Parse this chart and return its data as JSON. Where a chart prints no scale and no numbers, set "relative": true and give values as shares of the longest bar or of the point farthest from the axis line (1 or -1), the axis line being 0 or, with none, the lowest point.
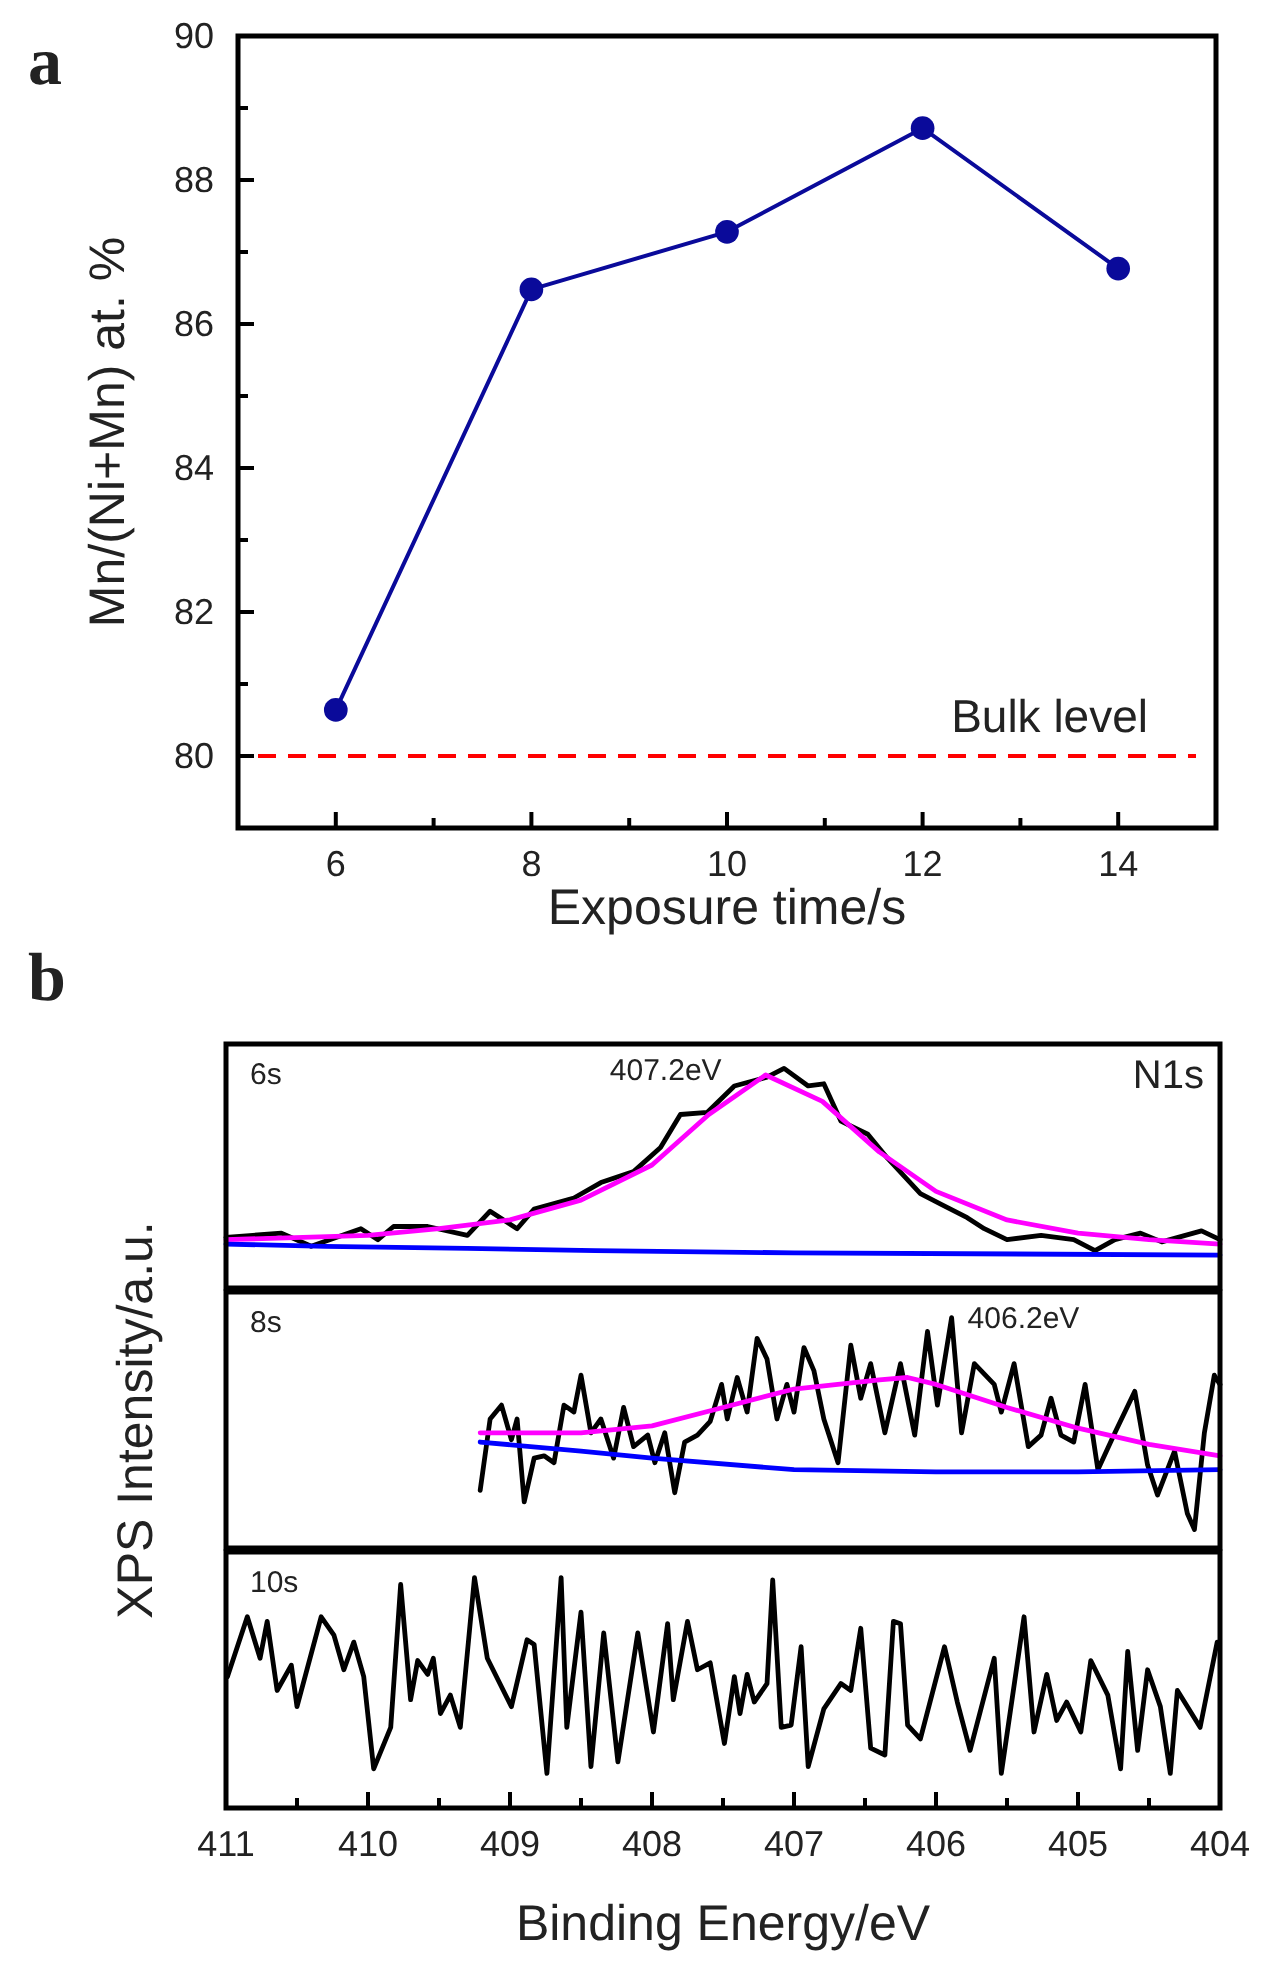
{
  "chart_data": [
    {
      "type": "line",
      "title": "a",
      "xlabel": "Exposure time/s",
      "ylabel": "Mn/(Ni+Mn) at. %",
      "x": [
        6,
        8,
        10,
        12,
        14
      ],
      "series": [
        {
          "color": "#0a0a9a",
          "values": [
            80.64,
            86.48,
            87.28,
            88.72,
            86.77
          ]
        }
      ],
      "marker": "circle",
      "xlim": [
        5,
        15
      ],
      "ylim": [
        79,
        90
      ],
      "xticks": [
        6,
        {
          "value": 7,
          "label": null
        },
        8,
        {
          "value": 9,
          "label": null
        },
        10,
        {
          "value": 11,
          "label": null
        },
        12,
        {
          "value": 13,
          "label": null
        },
        14
      ],
      "yticks": [
        80,
        {
          "value": 81,
          "label": null
        },
        82,
        {
          "value": 83,
          "label": null
        },
        84,
        {
          "value": 85,
          "label": null
        },
        86,
        {
          "value": 87,
          "label": null
        },
        88,
        {
          "value": 89,
          "label": null
        },
        90
      ],
      "ref_lines": [
        {
          "axis": "y",
          "value": 80,
          "label": "Bulk level",
          "color": "#ff0000",
          "line_style": "dashed"
        }
      ]
    },
    {
      "type": "line",
      "title": "b",
      "relative": true,
      "xlim": [
        411,
        404
      ],
      "annotations": [
        "6s",
        "N1s",
        {
          "text": "407.2eV",
          "x": 407.2,
          "y": 0.97
        }
      ],
      "series": [
        {
          "color": "#000000",
          "x": [
            411.0,
            410.61,
            410.4,
            410.05,
            409.93,
            409.82,
            409.58,
            409.3,
            409.14,
            408.95,
            408.83,
            408.55,
            408.36,
            408.13,
            407.94,
            407.8,
            407.61,
            407.42,
            407.19,
            407.07,
            406.9,
            406.79,
            406.67,
            406.48,
            406.34,
            406.11,
            405.96,
            405.78,
            405.66,
            405.5,
            405.26,
            405.03,
            404.88,
            404.74,
            404.56,
            404.41,
            404.13,
            404.0
          ],
          "values": [
            0.23,
            0.25,
            0.19,
            0.27,
            0.22,
            0.28,
            0.28,
            0.24,
            0.35,
            0.27,
            0.36,
            0.41,
            0.48,
            0.53,
            0.64,
            0.79,
            0.8,
            0.92,
            0.96,
            1.0,
            0.92,
            0.93,
            0.76,
            0.7,
            0.59,
            0.43,
            0.38,
            0.32,
            0.27,
            0.22,
            0.24,
            0.22,
            0.17,
            0.22,
            0.25,
            0.21,
            0.26,
            0.22
          ]
        },
        {
          "color": "#ff00ff",
          "x": [
            411,
            410,
            409.5,
            409,
            408.5,
            408,
            407.6,
            407.2,
            406.8,
            406.4,
            406,
            405.5,
            405,
            404.5,
            404
          ],
          "values": [
            0.22,
            0.24,
            0.27,
            0.31,
            0.4,
            0.56,
            0.79,
            0.97,
            0.85,
            0.62,
            0.44,
            0.31,
            0.25,
            0.22,
            0.2
          ]
        },
        {
          "color": "#0000ff",
          "x": [
            411,
            410.3,
            409.3,
            408.4,
            407,
            404
          ],
          "values": [
            0.2,
            0.19,
            0.18,
            0.17,
            0.16,
            0.15
          ]
        }
      ]
    },
    {
      "type": "line",
      "ylabel": "XPS Intensity/a.u.",
      "relative": true,
      "xlim": [
        411,
        404
      ],
      "annotations": [
        "8s",
        {
          "text": "406.2eV",
          "x": 406.2,
          "y": 0.74
        }
      ],
      "series": [
        {
          "color": "#000000",
          "x": [
            409.21,
            409.14,
            409.06,
            408.99,
            408.95,
            408.9,
            408.83,
            408.76,
            408.69,
            408.62,
            408.55,
            408.5,
            408.43,
            408.36,
            408.27,
            408.2,
            408.13,
            408.03,
            407.98,
            407.91,
            407.84,
            407.77,
            407.68,
            407.59,
            407.51,
            407.47,
            407.4,
            407.33,
            407.26,
            407.19,
            407.12,
            407.05,
            407.0,
            406.93,
            406.86,
            406.79,
            406.69,
            406.6,
            406.53,
            406.46,
            406.36,
            406.25,
            406.15,
            406.06,
            405.99,
            405.89,
            405.82,
            405.73,
            405.59,
            405.54,
            405.45,
            405.35,
            405.26,
            405.19,
            405.12,
            405.03,
            404.95,
            404.86,
            404.74,
            404.67,
            404.6,
            404.51,
            404.44,
            404.32,
            404.23,
            404.18,
            404.11,
            404.04,
            404.0
          ],
          "values": [
            0.25,
            0.56,
            0.62,
            0.47,
            0.56,
            0.2,
            0.39,
            0.4,
            0.37,
            0.62,
            0.59,
            0.75,
            0.5,
            0.56,
            0.39,
            0.61,
            0.44,
            0.49,
            0.37,
            0.5,
            0.24,
            0.46,
            0.49,
            0.55,
            0.71,
            0.56,
            0.74,
            0.59,
            0.91,
            0.82,
            0.56,
            0.71,
            0.59,
            0.87,
            0.77,
            0.56,
            0.37,
            0.88,
            0.65,
            0.8,
            0.5,
            0.8,
            0.49,
            0.94,
            0.62,
            1.0,
            0.5,
            0.8,
            0.71,
            0.59,
            0.8,
            0.44,
            0.49,
            0.65,
            0.49,
            0.46,
            0.71,
            0.34,
            0.5,
            0.59,
            0.68,
            0.36,
            0.23,
            0.42,
            0.15,
            0.08,
            0.5,
            0.75,
            0.71
          ]
        },
        {
          "color": "#ff00ff",
          "x": [
            409.21,
            408.5,
            408,
            407.5,
            407,
            406.4,
            406.2,
            406,
            405.5,
            405,
            404.5,
            404
          ],
          "values": [
            0.5,
            0.5,
            0.53,
            0.61,
            0.69,
            0.73,
            0.74,
            0.71,
            0.61,
            0.52,
            0.45,
            0.4
          ]
        },
        {
          "color": "#0000ff",
          "x": [
            409.21,
            408.5,
            408,
            407,
            406,
            405,
            404
          ],
          "values": [
            0.46,
            0.42,
            0.39,
            0.34,
            0.33,
            0.33,
            0.34
          ]
        }
      ]
    },
    {
      "type": "line",
      "xlabel": "Binding Energy/eV",
      "relative": true,
      "xlim": [
        411,
        404
      ],
      "tick_labels": "x",
      "xticks": [
        411,
        {
          "value": 410.5,
          "label": null
        },
        410,
        {
          "value": 409.5,
          "label": null
        },
        409,
        {
          "value": 408.5,
          "label": null
        },
        408,
        {
          "value": 407.5,
          "label": null
        },
        407,
        {
          "value": 406.5,
          "label": null
        },
        406,
        {
          "value": 405.5,
          "label": null
        },
        405,
        {
          "value": 404.5,
          "label": null
        },
        404
      ],
      "annotations": [
        "10s"
      ],
      "series": [
        {
          "color": "#000000",
          "x": [
            410.99,
            410.85,
            410.76,
            410.71,
            410.64,
            410.54,
            410.5,
            410.33,
            410.24,
            410.17,
            410.1,
            410.03,
            409.96,
            409.84,
            409.77,
            409.7,
            409.65,
            409.58,
            409.54,
            409.49,
            409.42,
            409.35,
            409.25,
            409.16,
            408.99,
            408.88,
            408.83,
            408.74,
            408.64,
            408.6,
            408.5,
            408.43,
            408.34,
            408.24,
            408.1,
            407.99,
            407.89,
            407.85,
            407.75,
            407.68,
            407.59,
            407.49,
            407.42,
            407.38,
            407.33,
            407.28,
            407.19,
            407.15,
            407.09,
            407.02,
            406.95,
            406.9,
            406.79,
            406.67,
            406.6,
            406.53,
            406.46,
            406.36,
            406.3,
            406.25,
            406.2,
            406.11,
            405.94,
            405.85,
            405.76,
            405.59,
            405.54,
            405.38,
            405.31,
            405.22,
            405.15,
            405.08,
            404.98,
            404.91,
            404.79,
            404.7,
            404.65,
            404.58,
            404.51,
            404.42,
            404.35,
            404.3,
            404.14,
            404.02
          ],
          "values": [
            0.57,
            0.83,
            0.65,
            0.81,
            0.51,
            0.62,
            0.44,
            0.83,
            0.75,
            0.6,
            0.72,
            0.57,
            0.17,
            0.35,
            0.97,
            0.47,
            0.64,
            0.58,
            0.65,
            0.41,
            0.49,
            0.35,
            1.0,
            0.65,
            0.44,
            0.73,
            0.71,
            0.15,
            1.0,
            0.35,
            0.85,
            0.18,
            0.76,
            0.2,
            0.76,
            0.33,
            0.8,
            0.47,
            0.81,
            0.6,
            0.63,
            0.28,
            0.57,
            0.41,
            0.58,
            0.46,
            0.54,
            0.99,
            0.35,
            0.36,
            0.7,
            0.18,
            0.43,
            0.54,
            0.51,
            0.78,
            0.26,
            0.23,
            0.81,
            0.8,
            0.36,
            0.3,
            0.7,
            0.46,
            0.25,
            0.65,
            0.15,
            0.83,
            0.33,
            0.58,
            0.38,
            0.46,
            0.33,
            0.64,
            0.49,
            0.17,
            0.68,
            0.25,
            0.6,
            0.44,
            0.15,
            0.51,
            0.35,
            0.72
          ]
        }
      ]
    }
  ]
}
